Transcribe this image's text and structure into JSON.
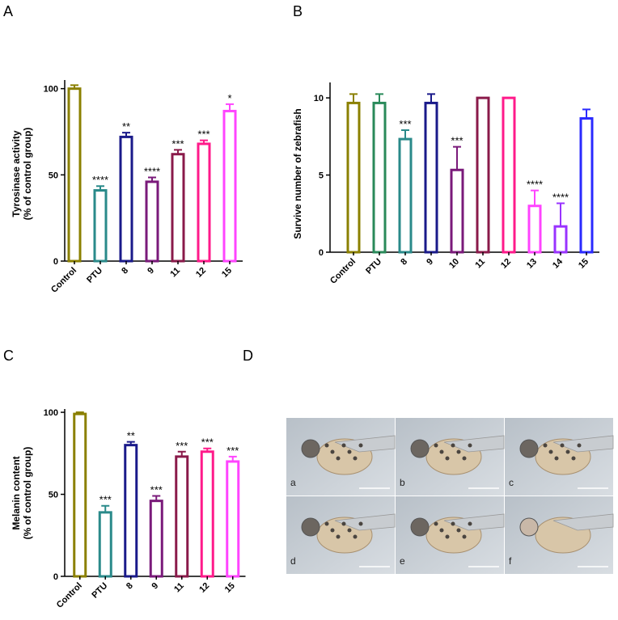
{
  "chart_data": [
    {
      "type": "bar",
      "panel": "A",
      "ylabel": [
        "Tyrosinase activity",
        "(% of control group)"
      ],
      "categories": [
        "Control",
        "PTU",
        "8",
        "9",
        "11",
        "12",
        "15"
      ],
      "values": [
        100,
        41,
        72,
        46,
        62,
        68,
        87
      ],
      "errors": [
        2,
        2.5,
        2.5,
        2.5,
        2.5,
        2,
        4
      ],
      "colors": [
        "#8b8000",
        "#2a8a8a",
        "#1a1a8a",
        "#7a1a7a",
        "#8a1a4a",
        "#ff1a8a",
        "#ff44ff"
      ],
      "annotations": [
        null,
        "****",
        "**",
        "****",
        "***",
        "***",
        "*"
      ],
      "ylim": [
        0,
        105
      ],
      "yticks": [
        0,
        50,
        100
      ]
    },
    {
      "type": "bar",
      "panel": "B",
      "ylabel": [
        "Survive number of zebrafish"
      ],
      "categories": [
        "Control",
        "PTU",
        "8",
        "9",
        "10",
        "11",
        "12",
        "13",
        "14",
        "15"
      ],
      "values": [
        9.67,
        9.67,
        7.33,
        9.67,
        5.33,
        10,
        10,
        3,
        1.67,
        8.67
      ],
      "errors": [
        0.58,
        0.58,
        0.58,
        0.58,
        1.5,
        0,
        0,
        1,
        1.5,
        0.58
      ],
      "colors": [
        "#8b8000",
        "#2a8a5a",
        "#2a8a8a",
        "#1a1a8a",
        "#7a1a7a",
        "#8a1a4a",
        "#ff1a8a",
        "#ff44ff",
        "#9933ff",
        "#2a2aff"
      ],
      "annotations": [
        null,
        null,
        "***",
        null,
        "***",
        null,
        null,
        "****",
        "****",
        null
      ],
      "ylim": [
        0,
        11
      ],
      "yticks": [
        0,
        5,
        10
      ]
    },
    {
      "type": "bar",
      "panel": "C",
      "ylabel": [
        "Melanin content",
        "(% of control group)"
      ],
      "categories": [
        "Control",
        "PTU",
        "8",
        "9",
        "11",
        "12",
        "15"
      ],
      "values": [
        99,
        39,
        80,
        46,
        73,
        76,
        70
      ],
      "errors": [
        1,
        4,
        2,
        3,
        3,
        2,
        3
      ],
      "colors": [
        "#8b8000",
        "#2a8a8a",
        "#1a1a8a",
        "#7a1a7a",
        "#8a1a4a",
        "#ff1a8a",
        "#ff44ff"
      ],
      "annotations": [
        null,
        "***",
        "**",
        "***",
        "***",
        "***",
        "***"
      ],
      "ylim": [
        0,
        102
      ],
      "yticks": [
        0,
        50,
        100
      ]
    }
  ],
  "figure_d": {
    "panel": "D",
    "images": [
      "a",
      "b",
      "c",
      "d",
      "e",
      "f"
    ]
  }
}
